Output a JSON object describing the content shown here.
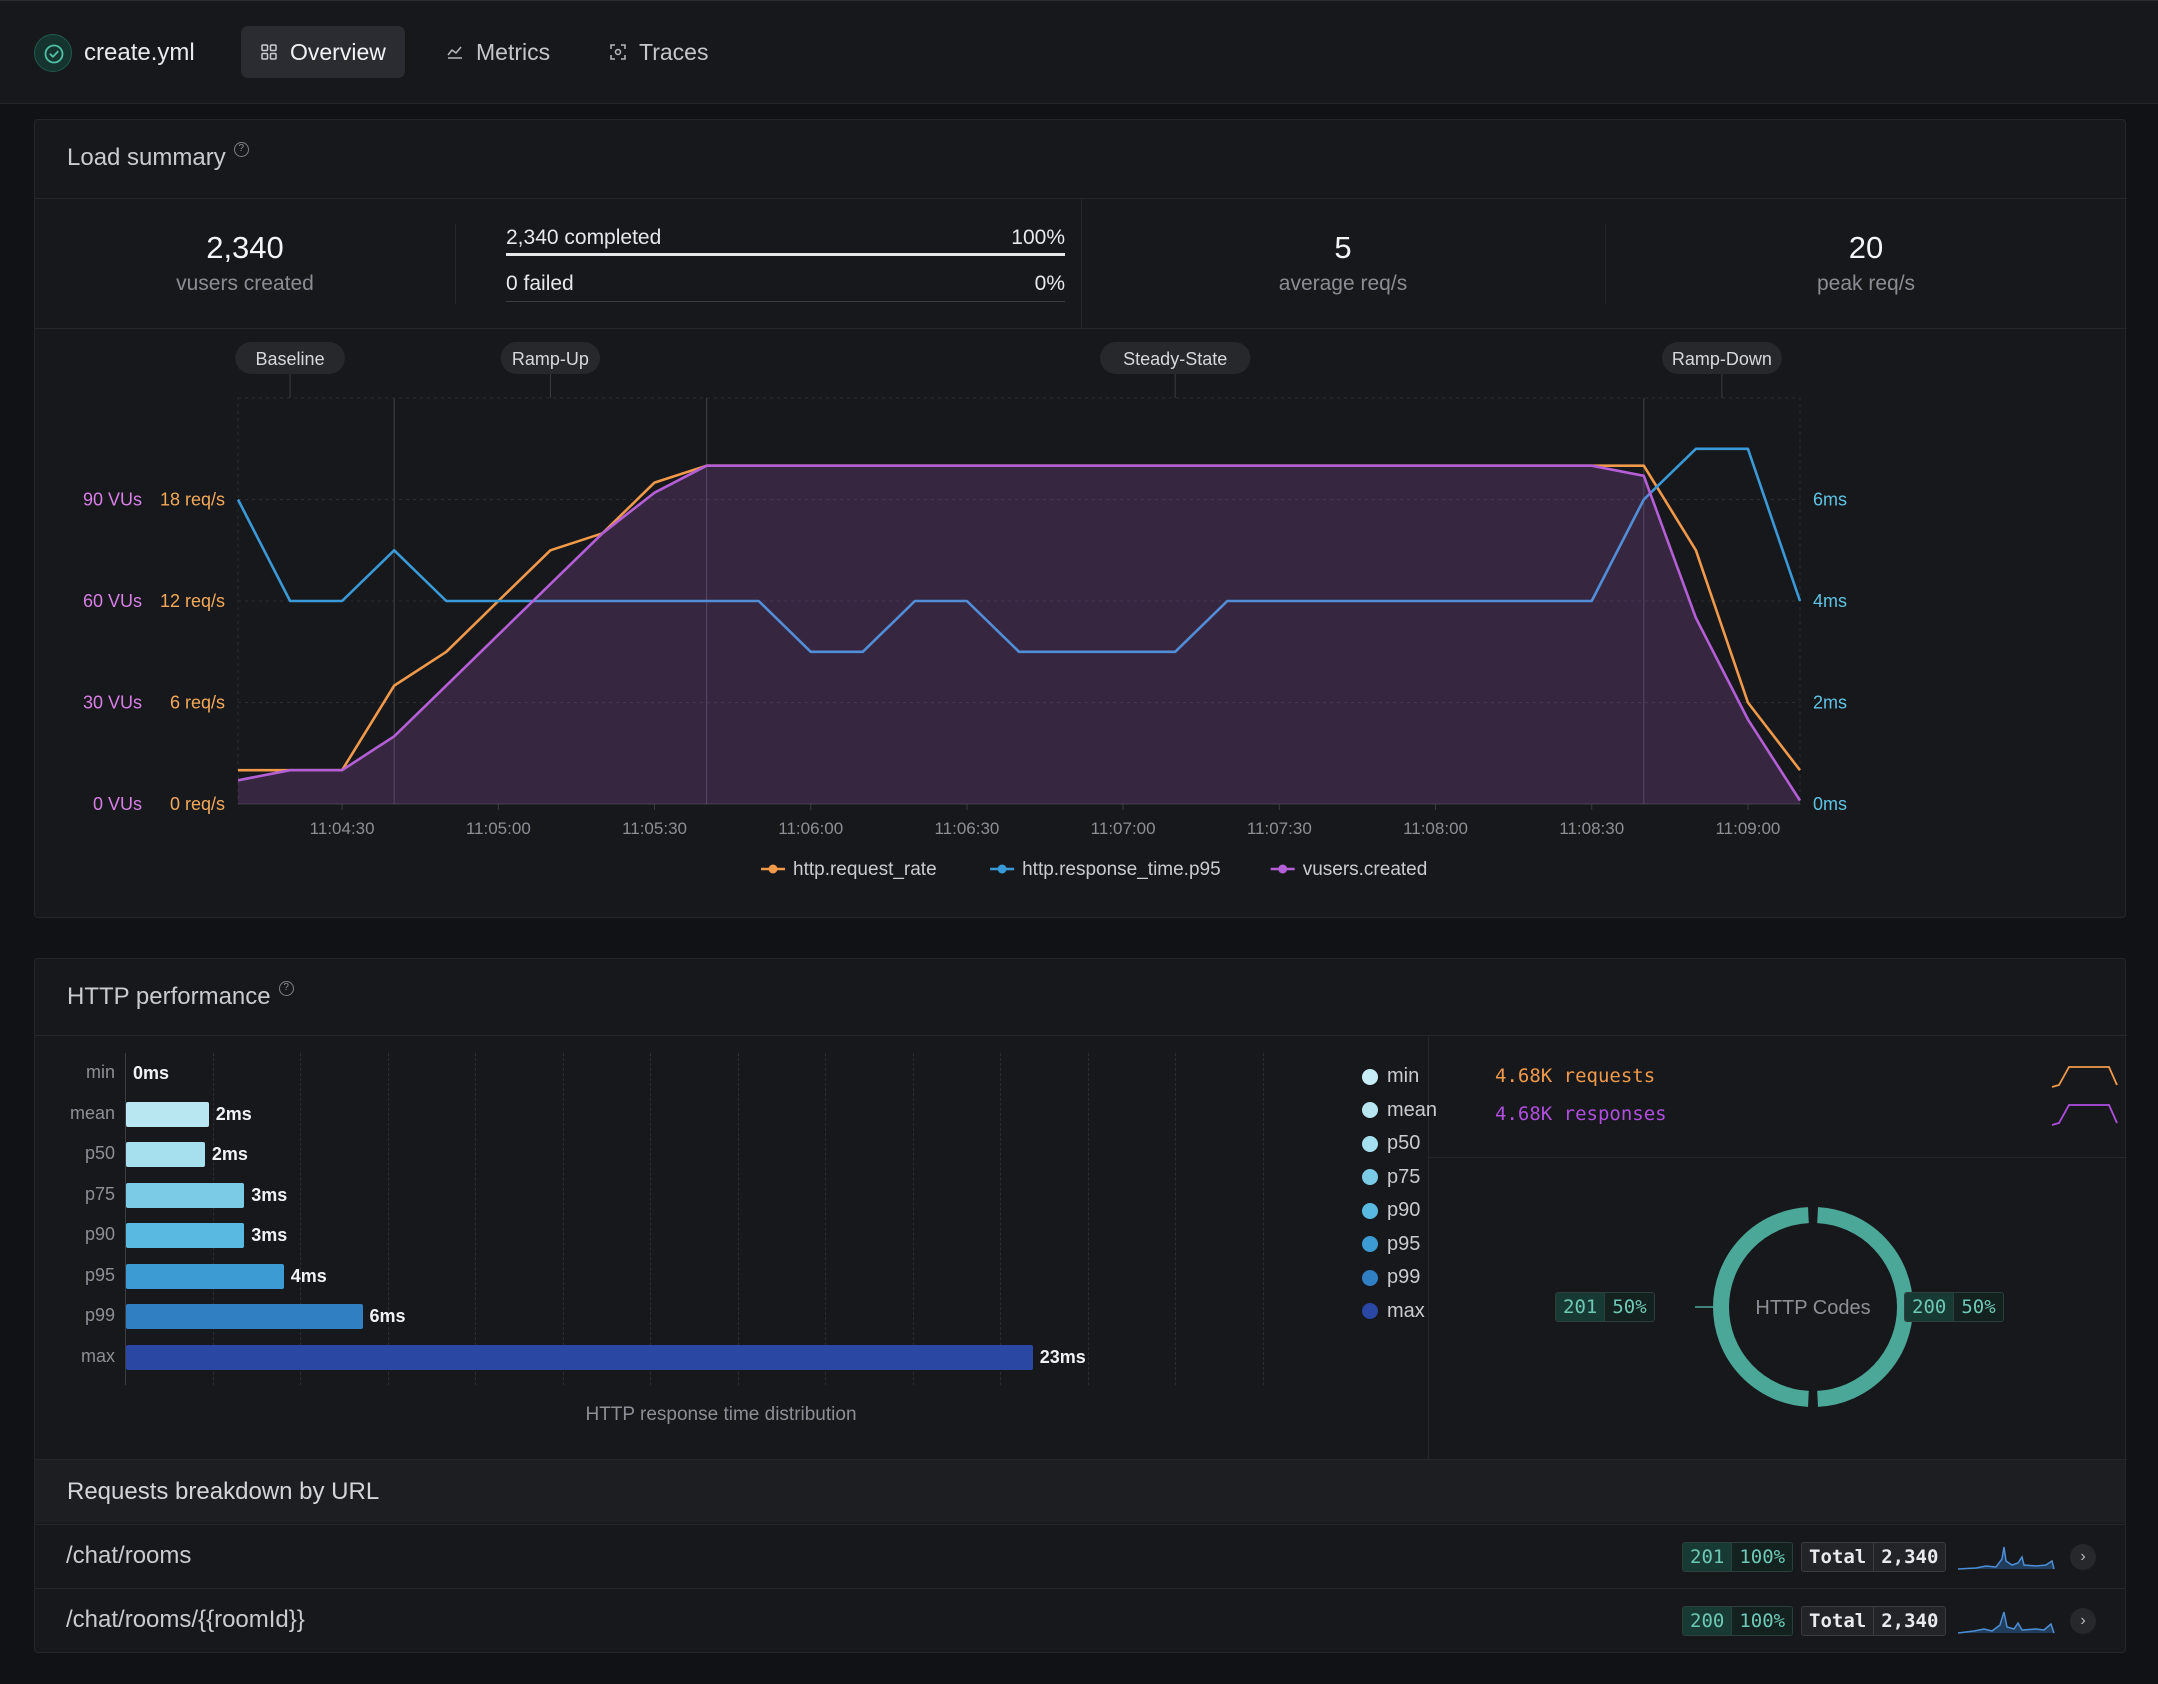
{
  "app": {
    "title": "create.yml"
  },
  "tabs": [
    {
      "label": "Overview",
      "active": true
    },
    {
      "label": "Metrics",
      "active": false
    },
    {
      "label": "Traces",
      "active": false
    }
  ],
  "load_summary": {
    "title": "Load summary",
    "vusers_created": {
      "value": "2,340",
      "label": "vusers created"
    },
    "completed": {
      "label": "2,340 completed",
      "pct": "100%",
      "fraction": 1.0
    },
    "failed": {
      "label": "0 failed",
      "pct": "0%",
      "fraction": 0.0
    },
    "average": {
      "value": "5",
      "label": "average req/s"
    },
    "peak": {
      "value": "20",
      "label": "peak req/s"
    }
  },
  "chart_data": [
    {
      "type": "line",
      "phases": [
        {
          "label": "Baseline",
          "start": "11:04:00",
          "end": "11:04:40"
        },
        {
          "label": "Ramp-Up",
          "start": "11:04:40",
          "end": "11:05:40"
        },
        {
          "label": "Steady-State",
          "start": "11:05:40",
          "end": "11:08:40"
        },
        {
          "label": "Ramp-Down",
          "start": "11:08:40",
          "end": "11:09:10"
        }
      ],
      "x_ticks": [
        "11:04:30",
        "11:05:00",
        "11:05:30",
        "11:06:00",
        "11:06:30",
        "11:07:00",
        "11:07:30",
        "11:08:00",
        "11:08:30",
        "11:09:00"
      ],
      "xlim": [
        "11:04:10",
        "11:09:10"
      ],
      "y_axes": {
        "vus": {
          "ticks": [
            "0 VUs",
            "30 VUs",
            "60 VUs",
            "90 VUs"
          ],
          "range": [
            0,
            120
          ],
          "color": "#d77fe6"
        },
        "rate": {
          "ticks": [
            "0 req/s",
            "6 req/s",
            "12 req/s",
            "18 req/s"
          ],
          "range": [
            0,
            24
          ],
          "color": "#f3a95a"
        },
        "rt": {
          "ticks": [
            "0ms",
            "2ms",
            "4ms",
            "6ms"
          ],
          "range": [
            0,
            8
          ],
          "color": "#5fc3e4"
        }
      },
      "series": [
        {
          "name": "http.request_rate",
          "color": "#f0994a",
          "axis": "rate",
          "x": [
            "11:04:10",
            "11:04:20",
            "11:04:30",
            "11:04:40",
            "11:04:50",
            "11:05:00",
            "11:05:10",
            "11:05:20",
            "11:05:30",
            "11:05:40",
            "11:08:40",
            "11:08:50",
            "11:09:00",
            "11:09:10"
          ],
          "y": [
            2,
            2,
            2,
            7,
            9,
            12,
            15,
            16,
            19,
            20,
            20,
            15,
            6,
            2
          ]
        },
        {
          "name": "http.response_time.p95",
          "color": "#3a9ad8",
          "axis": "rt",
          "x": [
            "11:04:10",
            "11:04:20",
            "11:04:30",
            "11:04:40",
            "11:04:50",
            "11:05:00",
            "11:05:10",
            "11:05:20",
            "11:05:30",
            "11:05:40",
            "11:05:50",
            "11:06:00",
            "11:06:10",
            "11:06:20",
            "11:06:30",
            "11:06:40",
            "11:06:50",
            "11:07:00",
            "11:07:10",
            "11:07:20",
            "11:07:30",
            "11:07:40",
            "11:07:50",
            "11:08:00",
            "11:08:10",
            "11:08:20",
            "11:08:30",
            "11:08:40",
            "11:08:50",
            "11:09:00",
            "11:09:10"
          ],
          "y": [
            6,
            4,
            4,
            5,
            4,
            4,
            4,
            4,
            4,
            4,
            4,
            3,
            3,
            4,
            4,
            3,
            3,
            3,
            3,
            4,
            4,
            4,
            4,
            4,
            4,
            4,
            4,
            6,
            7,
            7,
            4
          ]
        },
        {
          "name": "vusers.created",
          "color": "#b45fd6",
          "axis": "vus",
          "fill": true,
          "x": [
            "11:04:10",
            "11:04:20",
            "11:04:30",
            "11:04:40",
            "11:04:50",
            "11:05:00",
            "11:05:10",
            "11:05:20",
            "11:05:30",
            "11:05:40",
            "11:08:30",
            "11:08:40",
            "11:08:50",
            "11:09:00",
            "11:09:10"
          ],
          "y": [
            7,
            10,
            10,
            20,
            35,
            50,
            65,
            80,
            92,
            100,
            100,
            97,
            55,
            25,
            1
          ]
        }
      ],
      "legend": {
        "position": "bottom"
      }
    },
    {
      "type": "bar",
      "orientation": "horizontal",
      "title": "HTTP response time distribution",
      "categories": [
        "min",
        "mean",
        "p50",
        "p75",
        "p90",
        "p95",
        "p99",
        "max"
      ],
      "values": [
        0,
        2.1,
        2.0,
        3.0,
        3.0,
        4.0,
        6.0,
        23.0
      ],
      "value_labels": [
        "0ms",
        "2ms",
        "2ms",
        "3ms",
        "3ms",
        "4ms",
        "6ms",
        "23ms"
      ],
      "colors": [
        "#c7eef6",
        "#b8e7f2",
        "#a6e0ef",
        "#7ccbe6",
        "#5ab9e0",
        "#3d9bd3",
        "#2f7fc2",
        "#2a47a3"
      ],
      "xlim": [
        0,
        26
      ]
    },
    {
      "type": "pie",
      "title": "HTTP Codes",
      "slices": [
        {
          "label": "201",
          "pct": "50%",
          "value": 50
        },
        {
          "label": "200",
          "pct": "50%",
          "value": 50
        }
      ],
      "color": "#4ba797"
    }
  ],
  "http_performance": {
    "title": "HTTP performance",
    "requests": {
      "label": "4.68K requests",
      "color": "#f0994a"
    },
    "responses": {
      "label": "4.68K responses",
      "color": "#b04ee0"
    }
  },
  "breakdown": {
    "title": "Requests breakdown by URL",
    "rows": [
      {
        "url": "/chat/rooms",
        "code": "201",
        "pct": "100%",
        "total_label": "Total",
        "total": "2,340"
      },
      {
        "url": "/chat/rooms/{{roomId}}",
        "code": "200",
        "pct": "100%",
        "total_label": "Total",
        "total": "2,340"
      }
    ]
  }
}
